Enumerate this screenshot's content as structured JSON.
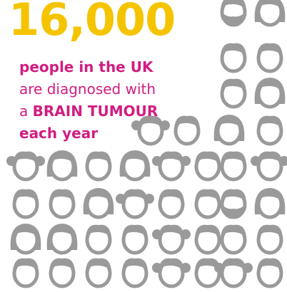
{
  "headline": {
    "number": "16,000",
    "line1": "people in the UK",
    "line2": "are diagnosed with",
    "line3_prefix": "a",
    "line3_emphasis": "BRAIN TUMOUR",
    "line4": "each year"
  },
  "colors": {
    "number": "#F5C400",
    "text": "#D11D81",
    "face": "#9A9A9A",
    "background": "#FFFFFF"
  },
  "faces": [
    {
      "hair": "beard"
    },
    {
      "hair": "long"
    },
    {
      "hair": "short"
    },
    {
      "hair": "short"
    },
    {
      "hair": "short"
    },
    {
      "hair": "long"
    },
    {
      "hair": "pigtails"
    },
    {
      "hair": "short"
    },
    {
      "hair": "long"
    },
    {
      "hair": "short"
    },
    {
      "hair": "pigtails"
    },
    {
      "hair": "long"
    },
    {
      "hair": "short"
    },
    {
      "hair": "long"
    },
    {
      "hair": "pigtails"
    },
    {
      "hair": "short"
    },
    {
      "hair": "short"
    },
    {
      "hair": "pigtails"
    },
    {
      "hair": "short"
    },
    {
      "hair": "short"
    },
    {
      "hair": "long"
    },
    {
      "hair": "pigtails"
    },
    {
      "hair": "short"
    },
    {
      "hair": "short"
    },
    {
      "hair": "beard"
    },
    {
      "hair": "long"
    },
    {
      "hair": "long"
    },
    {
      "hair": "long"
    },
    {
      "hair": "short"
    },
    {
      "hair": "short"
    },
    {
      "hair": "pigtails"
    },
    {
      "hair": "short"
    },
    {
      "hair": "short"
    },
    {
      "hair": "short"
    },
    {
      "hair": "short"
    },
    {
      "hair": "short"
    },
    {
      "hair": "short"
    },
    {
      "hair": "short"
    },
    {
      "hair": "pigtails"
    },
    {
      "hair": "short"
    },
    {
      "hair": "pigtails"
    },
    {
      "hair": "short"
    }
  ]
}
